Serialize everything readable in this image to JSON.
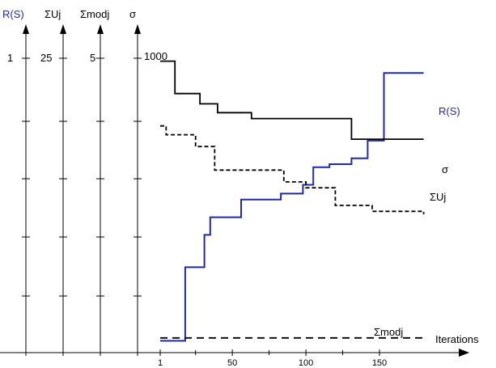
{
  "chart_data": {
    "type": "line",
    "title": "",
    "xlabel": "Iterations",
    "x_ticks": [
      1,
      50,
      100,
      150
    ],
    "xlim": [
      1,
      180
    ],
    "axes": [
      {
        "name": "R(S)",
        "top_label": "1",
        "color": "#1f2aa8"
      },
      {
        "name": "ΣUj",
        "top_label": "25",
        "color": "#000000"
      },
      {
        "name": "Σmodj",
        "top_label": "5",
        "color": "#000000"
      },
      {
        "name": "σ",
        "top_label": "1000",
        "color": "#000000"
      }
    ],
    "grid": false,
    "series": [
      {
        "name": "R(S)",
        "style": "solid",
        "color": "#1f2aa8",
        "x": [
          1,
          13,
          18,
          27,
          31,
          35,
          43,
          56,
          68,
          83,
          98,
          105,
          116,
          128,
          131,
          142,
          153,
          165,
          180
        ],
        "y": [
          0.04,
          0.04,
          0.29,
          0.29,
          0.4,
          0.46,
          0.46,
          0.52,
          0.52,
          0.54,
          0.57,
          0.63,
          0.64,
          0.64,
          0.66,
          0.72,
          0.95,
          0.95,
          0.95
        ]
      },
      {
        "name": "σ",
        "style": "solid",
        "color": "#000000",
        "x": [
          1,
          8,
          11,
          25,
          28,
          40,
          55,
          63,
          70,
          80,
          98,
          115,
          128,
          131,
          145,
          180
        ],
        "y": [
          990,
          990,
          880,
          880,
          845,
          815,
          815,
          795,
          795,
          795,
          795,
          795,
          795,
          725,
          725,
          725
        ]
      },
      {
        "name": "ΣUj",
        "style": "dashed",
        "color": "#000000",
        "x": [
          1,
          5,
          10,
          25,
          38,
          46,
          58,
          68,
          85,
          100,
          105,
          120,
          135,
          145,
          157,
          180
        ],
        "y": [
          0.77,
          0.74,
          0.74,
          0.7,
          0.62,
          0.62,
          0.62,
          0.62,
          0.58,
          0.56,
          0.56,
          0.5,
          0.5,
          0.48,
          0.48,
          0.47
        ]
      },
      {
        "name": "Σmodj",
        "style": "dashed",
        "color": "#000000",
        "x": [
          1,
          180
        ],
        "y": [
          0.05,
          0.05
        ]
      }
    ]
  }
}
